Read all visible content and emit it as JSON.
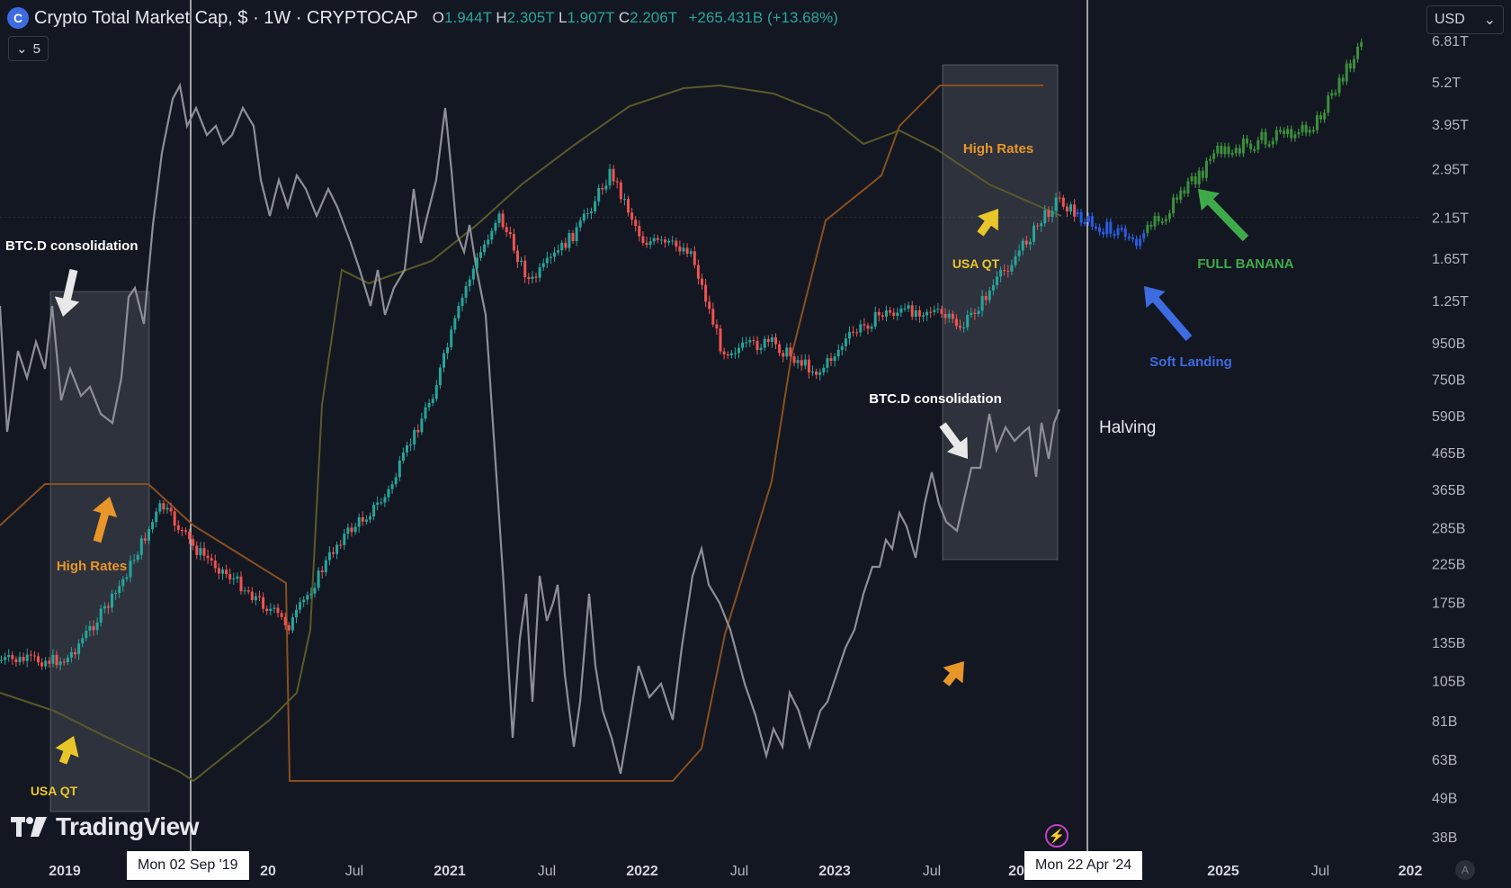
{
  "header": {
    "title": "Crypto Total Market Cap, $ · 1W · CRYPTOCAP",
    "o_label": "O",
    "o_value": "1.944T",
    "h_label": "H",
    "h_value": "2.305T",
    "l_label": "L",
    "l_value": "1.907T",
    "c_label": "C",
    "c_value": "2.206T",
    "change": "+265.431B (+13.68%)",
    "indicator_count": "5",
    "currency": "USD"
  },
  "branding": {
    "name": "TradingView"
  },
  "crosshair_dates": [
    "Mon 02 Sep '19",
    "Mon 22 Apr '24"
  ],
  "colors": {
    "background": "#131722",
    "up": "#26a69a",
    "down": "#ef5350",
    "projection_blue": "#2a5ce0",
    "projection_green": "#3c8f3c",
    "btcd_line": "#8c8f96",
    "rates_line": "#8a4f1e",
    "qt_line": "#5a5a28",
    "orange": "#e8962a",
    "yellow": "#e8c62a",
    "green_text": "#3faa4a",
    "blue_text": "#3d6be0"
  },
  "chart_data": {
    "type": "line",
    "title": "Crypto Total Market Cap, $ · 1W · CRYPTOCAP",
    "y_scale": "log",
    "y_axis_ticks": [
      "6.81T",
      "5.2T",
      "3.95T",
      "2.95T",
      "2.15T",
      "1.65T",
      "1.25T",
      "950B",
      "750B",
      "590B",
      "465B",
      "365B",
      "285B",
      "225B",
      "175B",
      "135B",
      "105B",
      "81B",
      "63B",
      "49B",
      "38B"
    ],
    "x_axis_ticks": [
      "2019",
      "20",
      "Jul",
      "2021",
      "Jul",
      "2022",
      "Jul",
      "2023",
      "Jul",
      "20",
      "2025",
      "Jul",
      "202"
    ],
    "series": [
      {
        "name": "Crypto Total Market Cap",
        "x": [
          "2019-01",
          "2019-04",
          "2019-07",
          "2019-09",
          "2019-12",
          "2020-03",
          "2020-06",
          "2020-09",
          "2020-12",
          "2021-02",
          "2021-04",
          "2021-06",
          "2021-09",
          "2021-11",
          "2022-01",
          "2022-04",
          "2022-06",
          "2022-09",
          "2022-12",
          "2023-02",
          "2023-04",
          "2023-07",
          "2023-09",
          "2023-12",
          "2024-03",
          "2024-04"
        ],
        "values": [
          120,
          180,
          330,
          250,
          195,
          150,
          260,
          350,
          700,
          1400,
          2200,
          1400,
          2000,
          2900,
          1850,
          1750,
          900,
          950,
          780,
          1000,
          1150,
          1180,
          1050,
          1600,
          2450,
          2206
        ]
      },
      {
        "name": "Projection",
        "x": [
          "2024-04",
          "2024-06",
          "2024-08",
          "2024-10",
          "2025-01",
          "2025-04",
          "2025-07",
          "2025-10"
        ],
        "values": [
          2206,
          2000,
          1850,
          2300,
          3300,
          3600,
          3900,
          6900
        ]
      }
    ],
    "annotations": [
      {
        "text": "BTC.D consolidation"
      },
      {
        "text": "High Rates"
      },
      {
        "text": "USA QT"
      },
      {
        "text": "High Rates"
      },
      {
        "text": "USA QT"
      },
      {
        "text": "BTC.D consolidation"
      },
      {
        "text": "Halving"
      },
      {
        "text": "FULL BANANA"
      },
      {
        "text": "Soft Landing"
      }
    ]
  }
}
